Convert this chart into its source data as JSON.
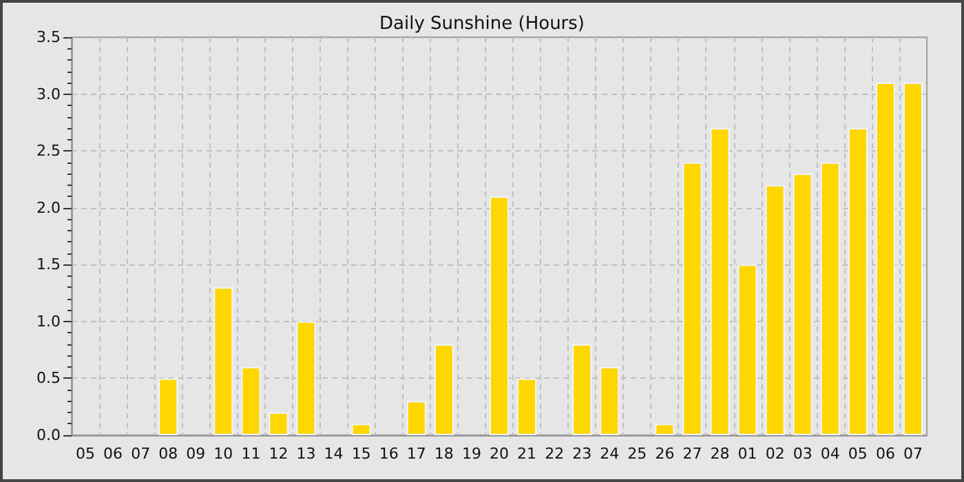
{
  "chart_data": {
    "type": "bar",
    "title": "Daily Sunshine (Hours)",
    "categories": [
      "05",
      "06",
      "07",
      "08",
      "09",
      "10",
      "11",
      "12",
      "13",
      "14",
      "15",
      "16",
      "17",
      "18",
      "19",
      "20",
      "21",
      "22",
      "23",
      "24",
      "25",
      "26",
      "27",
      "28",
      "01",
      "02",
      "03",
      "04",
      "05",
      "06",
      "07"
    ],
    "values": [
      0,
      0,
      0,
      0.5,
      0,
      1.3,
      0.6,
      0.2,
      1.0,
      0,
      0.1,
      0,
      0.3,
      0.8,
      0,
      2.1,
      0.5,
      0,
      0.8,
      0.6,
      0,
      0.1,
      2.4,
      2.7,
      1.5,
      2.2,
      2.3,
      2.4,
      2.7,
      3.1,
      3.1
    ],
    "color": "#ffd700",
    "ylim": [
      0,
      3.5
    ],
    "yticks": [
      {
        "value": 0,
        "label": "0.0"
      },
      {
        "value": 0.1,
        "label": null
      },
      {
        "value": 0.2,
        "label": null
      },
      {
        "value": 0.3,
        "label": null
      },
      {
        "value": 0.4,
        "label": null
      },
      {
        "value": 0.5,
        "label": "0.5"
      },
      {
        "value": 0.6,
        "label": null
      },
      {
        "value": 0.7,
        "label": null
      },
      {
        "value": 0.8,
        "label": null
      },
      {
        "value": 0.9,
        "label": null
      },
      {
        "value": 1,
        "label": "1.0"
      },
      {
        "value": 1.1,
        "label": null
      },
      {
        "value": 1.2,
        "label": null
      },
      {
        "value": 1.3,
        "label": null
      },
      {
        "value": 1.4,
        "label": null
      },
      {
        "value": 1.5,
        "label": "1.5"
      },
      {
        "value": 1.6,
        "label": null
      },
      {
        "value": 1.7,
        "label": null
      },
      {
        "value": 1.8,
        "label": null
      },
      {
        "value": 1.9,
        "label": null
      },
      {
        "value": 2,
        "label": "2.0"
      },
      {
        "value": 2.1,
        "label": null
      },
      {
        "value": 2.2,
        "label": null
      },
      {
        "value": 2.3,
        "label": null
      },
      {
        "value": 2.4,
        "label": null
      },
      {
        "value": 2.5,
        "label": "2.5"
      },
      {
        "value": 2.6,
        "label": null
      },
      {
        "value": 2.7,
        "label": null
      },
      {
        "value": 2.8,
        "label": null
      },
      {
        "value": 2.9,
        "label": null
      },
      {
        "value": 3,
        "label": "3.0"
      },
      {
        "value": 3.1,
        "label": null
      },
      {
        "value": 3.2,
        "label": null
      },
      {
        "value": 3.3,
        "label": null
      },
      {
        "value": 3.4,
        "label": null
      },
      {
        "value": 3.5,
        "label": "3.5"
      }
    ],
    "grid": true
  }
}
